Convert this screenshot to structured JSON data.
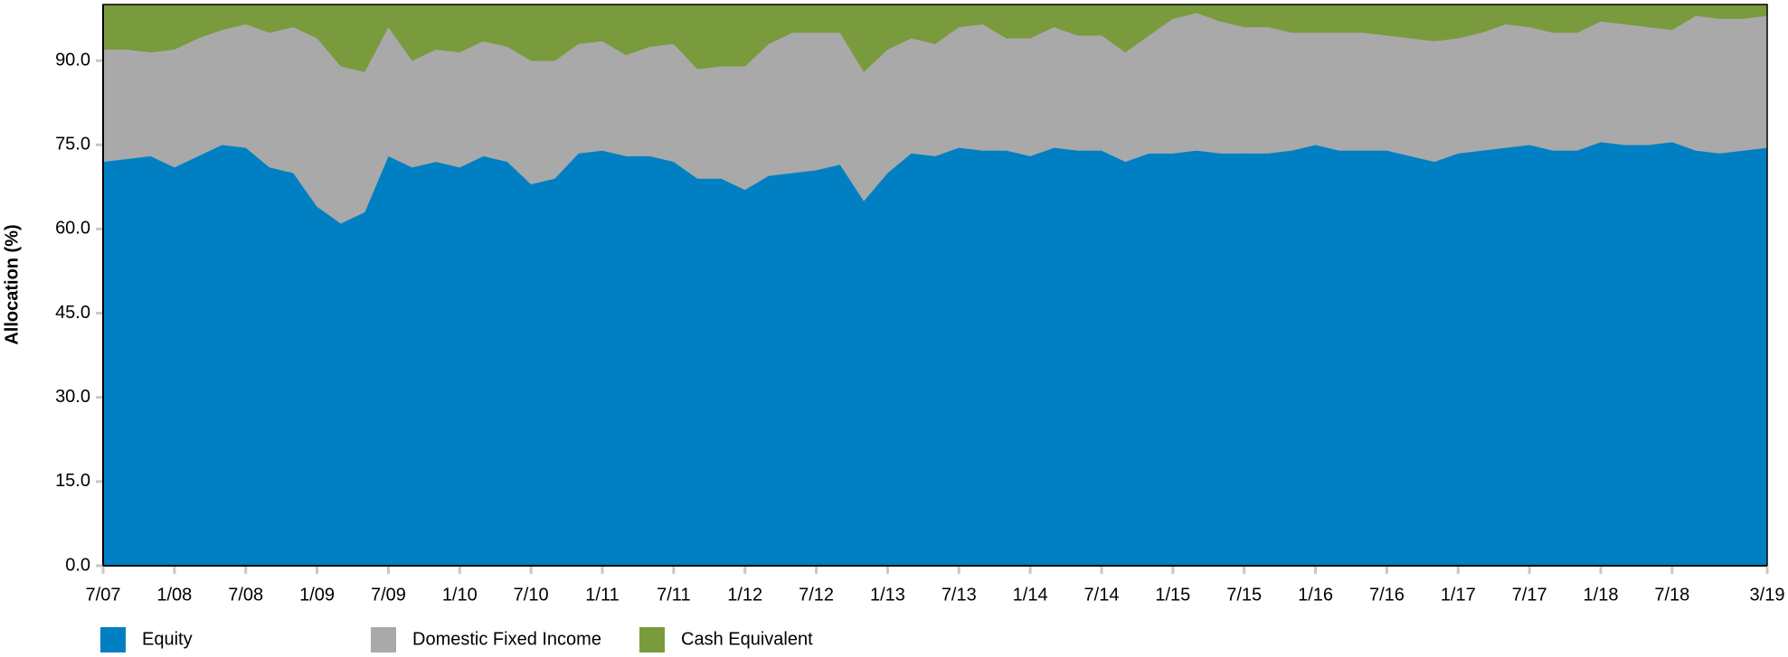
{
  "chart_data": {
    "type": "stacked-area",
    "ylabel": "Allocation (%)",
    "categories": [
      "7/07",
      null,
      null,
      "1/08",
      null,
      null,
      "7/08",
      null,
      null,
      "1/09",
      null,
      null,
      "7/09",
      null,
      null,
      "1/10",
      null,
      null,
      "7/10",
      null,
      null,
      "1/11",
      null,
      null,
      "7/11",
      null,
      null,
      "1/12",
      null,
      null,
      "7/12",
      null,
      null,
      "1/13",
      null,
      null,
      "7/13",
      null,
      null,
      "1/14",
      null,
      null,
      "7/14",
      null,
      null,
      "1/15",
      null,
      null,
      "7/15",
      null,
      null,
      "1/16",
      null,
      null,
      "7/16",
      null,
      null,
      "1/17",
      null,
      null,
      "7/17",
      null,
      null,
      "1/18",
      null,
      null,
      "7/18",
      null,
      null,
      null,
      "3/19"
    ],
    "series": [
      {
        "name": "Equity",
        "color": "#0080c3",
        "values": [
          72,
          72.5,
          73,
          71,
          73,
          75,
          74.5,
          71,
          70,
          64,
          61,
          63,
          73,
          71,
          72,
          71,
          73,
          72,
          68,
          69,
          73.5,
          74,
          73,
          73,
          72,
          69,
          69,
          67,
          69.5,
          70,
          70.5,
          71.5,
          65,
          70,
          73.5,
          73,
          74.5,
          74,
          74,
          73,
          74.5,
          74,
          74,
          72,
          73.5,
          73.5,
          74,
          73.5,
          73.5,
          73.5,
          74,
          75,
          74,
          74,
          74,
          73,
          72,
          73.5,
          74,
          74.5,
          75,
          74,
          74,
          75.5,
          75,
          75,
          75.5,
          74,
          73.5,
          74,
          74.5
        ]
      },
      {
        "name": "Domestic Fixed Income",
        "color": "#a9a9a9",
        "values": [
          20,
          19.5,
          18.5,
          21,
          21,
          20.5,
          22,
          24,
          26,
          30,
          28,
          25,
          23,
          19,
          20,
          20.5,
          20.5,
          20.5,
          22,
          21,
          19.5,
          19.5,
          18,
          19.5,
          21,
          19.5,
          20,
          22,
          23.5,
          25,
          24.5,
          23.5,
          23,
          22,
          20.5,
          20,
          21.5,
          22.5,
          20,
          21,
          21.5,
          20.5,
          20.5,
          19.5,
          21,
          24,
          24.5,
          23.5,
          22.5,
          22.5,
          21,
          20,
          21,
          21,
          20.5,
          21,
          21.5,
          20.5,
          21,
          22,
          21,
          21,
          21,
          21.5,
          21.5,
          21,
          20,
          24,
          24,
          23.5,
          23.5
        ]
      },
      {
        "name": "Cash Equivalent",
        "color": "#7a9a3e",
        "values": [
          8,
          8,
          8.5,
          8,
          6,
          4.5,
          3.5,
          5,
          4,
          6,
          11,
          12,
          4,
          10,
          8,
          8.5,
          6.5,
          7.5,
          10,
          10,
          7,
          6.5,
          9,
          7.5,
          7,
          11.5,
          11,
          11,
          7,
          5,
          5,
          5,
          12,
          8,
          6,
          7,
          4,
          3.5,
          6,
          6,
          4,
          5.5,
          5.5,
          8.5,
          5.5,
          2.5,
          1.5,
          3,
          4,
          4,
          5,
          5,
          5,
          5,
          5.5,
          6,
          6.5,
          6,
          5,
          3.5,
          4,
          5,
          5,
          3,
          3.5,
          4,
          4.5,
          2,
          2.5,
          2.5,
          2
        ]
      }
    ],
    "ylim": [
      0,
      100
    ],
    "yticks": [
      {
        "value": 0,
        "label": "0.0"
      },
      {
        "value": 15,
        "label": "15.0"
      },
      {
        "value": 30,
        "label": "30.0"
      },
      {
        "value": 45,
        "label": "45.0"
      },
      {
        "value": 60,
        "label": "60.0"
      },
      {
        "value": 75,
        "label": "75.0"
      },
      {
        "value": 90,
        "label": "90.0"
      }
    ],
    "legend": "bottom-left"
  }
}
